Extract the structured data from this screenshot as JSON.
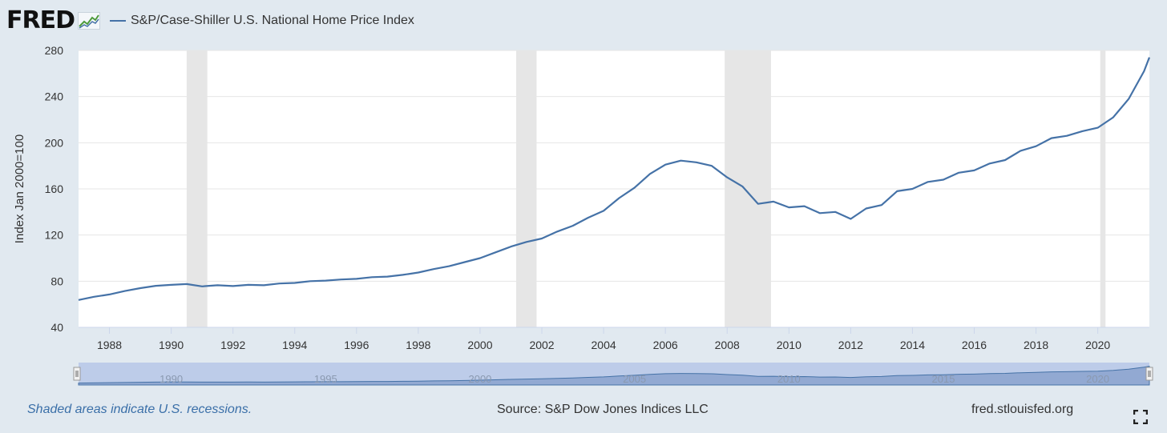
{
  "header": {
    "logo_text": "FRED",
    "legend_label": "S&P/Case-Shiller U.S. National Home Price Index"
  },
  "navigator": {
    "year_labels": [
      "1990",
      "1995",
      "2000",
      "2005",
      "2010",
      "2015",
      "2020"
    ]
  },
  "footer": {
    "recession_note": "Shaded areas indicate U.S. recessions.",
    "source": "Source: S&P Dow Jones Indices LLC",
    "site": "fred.stlouisfed.org"
  },
  "colors": {
    "line": "#4572a7",
    "recession": "#e6e6e6",
    "grid": "#e6e6e6",
    "navigator_fill": "#a9bde0"
  },
  "chart_data": {
    "type": "line",
    "title": "S&P/Case-Shiller U.S. National Home Price Index",
    "xlabel": "",
    "ylabel": "Index Jan 2000=100",
    "xlim": [
      1987.0,
      2021.67
    ],
    "ylim": [
      40,
      280
    ],
    "yticks": [
      40,
      80,
      120,
      160,
      200,
      240,
      280
    ],
    "xticks": [
      1988,
      1990,
      1992,
      1994,
      1996,
      1998,
      2000,
      2002,
      2004,
      2006,
      2008,
      2010,
      2012,
      2014,
      2016,
      2018,
      2020
    ],
    "grid": true,
    "legend": "top-left",
    "recessions": [
      {
        "start": 1990.5,
        "end": 1991.17
      },
      {
        "start": 2001.17,
        "end": 2001.83
      },
      {
        "start": 2007.92,
        "end": 2009.42
      },
      {
        "start": 2020.08,
        "end": 2020.25
      }
    ],
    "series": [
      {
        "name": "S&P/Case-Shiller U.S. National Home Price Index",
        "x": [
          1987.0,
          1987.5,
          1988.0,
          1988.5,
          1989.0,
          1989.5,
          1990.0,
          1990.5,
          1991.0,
          1991.5,
          1992.0,
          1992.5,
          1993.0,
          1993.5,
          1994.0,
          1994.5,
          1995.0,
          1995.5,
          1996.0,
          1996.5,
          1997.0,
          1997.5,
          1998.0,
          1998.5,
          1999.0,
          1999.5,
          2000.0,
          2000.5,
          2001.0,
          2001.5,
          2002.0,
          2002.5,
          2003.0,
          2003.5,
          2004.0,
          2004.5,
          2005.0,
          2005.5,
          2006.0,
          2006.5,
          2007.0,
          2007.5,
          2008.0,
          2008.5,
          2009.0,
          2009.5,
          2010.0,
          2010.5,
          2011.0,
          2011.5,
          2012.0,
          2012.5,
          2013.0,
          2013.5,
          2014.0,
          2014.5,
          2015.0,
          2015.5,
          2016.0,
          2016.5,
          2017.0,
          2017.5,
          2018.0,
          2018.5,
          2019.0,
          2019.5,
          2020.0,
          2020.5,
          2021.0,
          2021.5,
          2021.67
        ],
        "values": [
          63.7,
          66.5,
          68.5,
          71.5,
          74.0,
          76.0,
          76.8,
          77.5,
          75.5,
          76.5,
          75.8,
          76.8,
          76.5,
          78.0,
          78.5,
          80.0,
          80.5,
          81.5,
          82.0,
          83.5,
          84.0,
          85.5,
          87.5,
          90.5,
          93.0,
          96.5,
          100.0,
          105.0,
          110.0,
          114.0,
          117.0,
          123.0,
          128.0,
          135.0,
          141.0,
          152.0,
          161.0,
          173.0,
          181.0,
          184.5,
          183.0,
          180.0,
          170.0,
          162.0,
          147.0,
          149.0,
          144.0,
          145.0,
          139.0,
          140.0,
          134.0,
          143.0,
          146.0,
          158.0,
          160.0,
          166.0,
          168.0,
          174.0,
          176.0,
          182.0,
          185.0,
          193.0,
          197.0,
          204.0,
          206.0,
          210.0,
          213.0,
          222.0,
          238.0,
          262.0,
          274.0
        ]
      }
    ]
  }
}
